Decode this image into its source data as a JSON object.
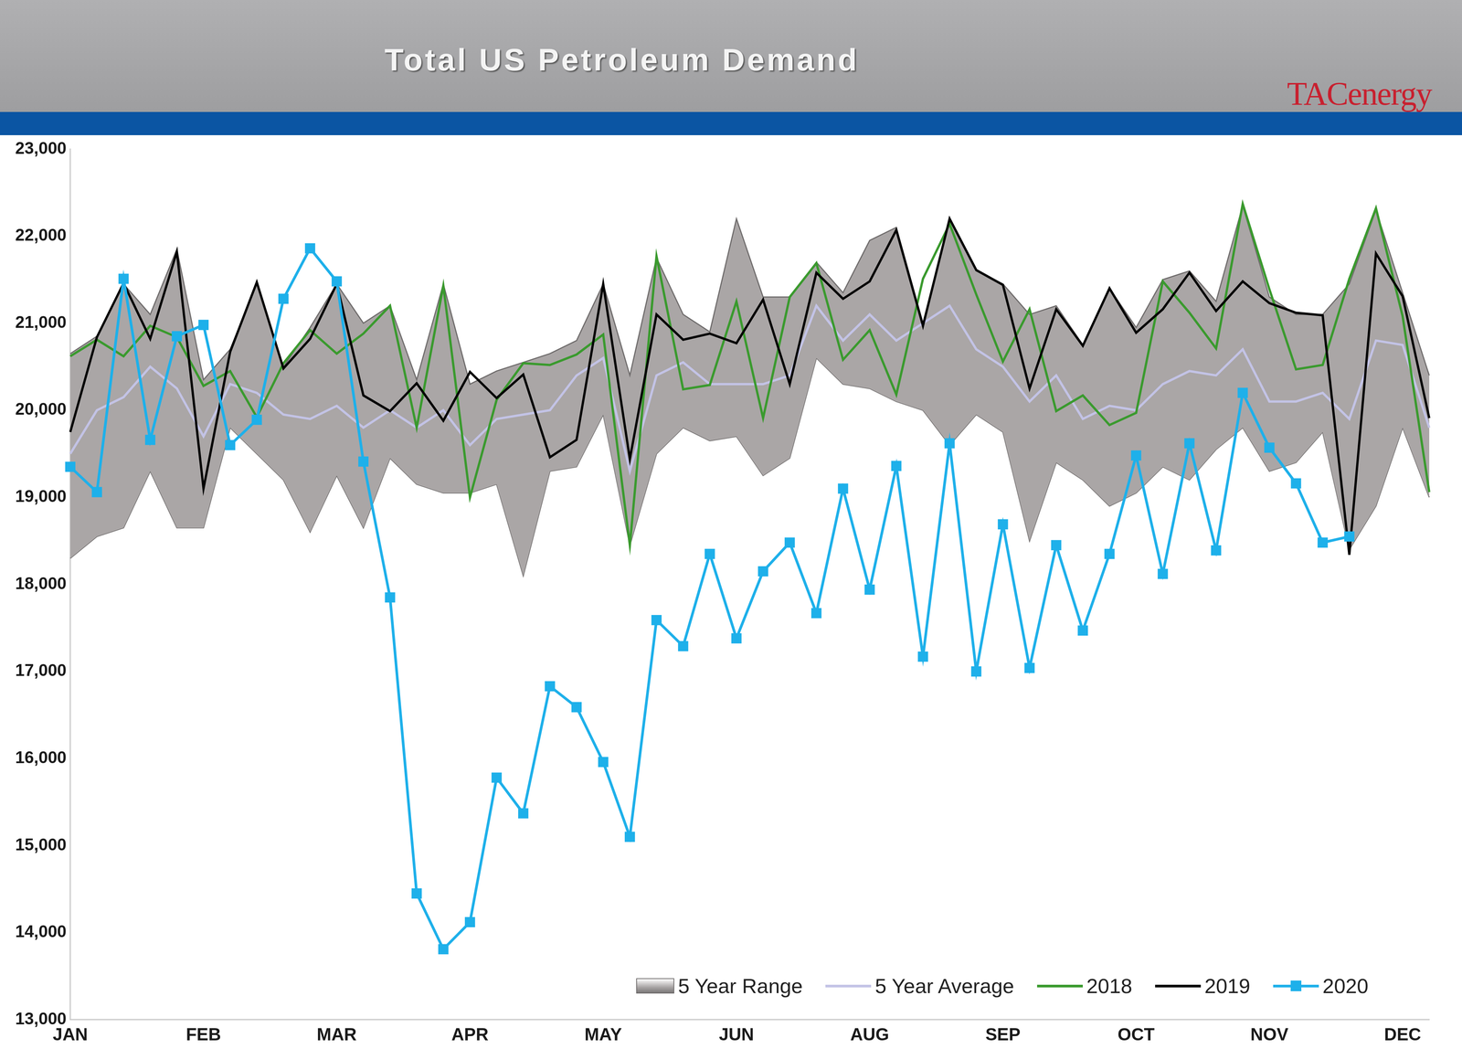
{
  "chart_data": {
    "type": "line",
    "title": "Total US Petroleum Demand",
    "annotations": [
      "TACenergy"
    ],
    "categories": [
      "JAN",
      null,
      null,
      null,
      null,
      "FEB",
      null,
      null,
      null,
      null,
      "MAR",
      null,
      null,
      null,
      null,
      "APR",
      null,
      null,
      null,
      null,
      "MAY",
      null,
      null,
      null,
      null,
      "JUN",
      null,
      null,
      null,
      null,
      "AUG",
      null,
      null,
      null,
      null,
      "SEP",
      null,
      null,
      null,
      null,
      "OCT",
      null,
      null,
      null,
      null,
      "NOV",
      null,
      null,
      null,
      null,
      "DEC",
      null
    ],
    "series": [
      {
        "name": "5 Year Range",
        "type": "range",
        "color": "#aaa6a6",
        "low": [
          18300,
          18550,
          18650,
          19300,
          18650,
          18650,
          19800,
          19500,
          19200,
          18600,
          19250,
          18650,
          19450,
          19150,
          19050,
          19050,
          19150,
          18100,
          19300,
          19350,
          19950,
          18450,
          19500,
          19800,
          19650,
          19700,
          19250,
          19450,
          20600,
          20300,
          20250,
          20100,
          20000,
          19600,
          19950,
          19750,
          18500,
          19400,
          19200,
          18900,
          19050,
          19350,
          19200,
          19550,
          19800,
          19300,
          19400,
          19750,
          18400,
          18900,
          19800,
          19000
        ],
        "high": [
          20650,
          20850,
          21450,
          21100,
          21850,
          20350,
          20700,
          21450,
          20500,
          20950,
          21450,
          21000,
          21200,
          20350,
          21450,
          20300,
          20450,
          20550,
          20650,
          20800,
          21450,
          20400,
          21750,
          21100,
          20900,
          22200,
          21300,
          21300,
          21700,
          21350,
          21950,
          22100,
          21000,
          22200,
          21600,
          21450,
          21100,
          21200,
          20750,
          21400,
          20950,
          21500,
          21600,
          21250,
          22350,
          21300,
          21100,
          21100,
          21450,
          22300,
          21350,
          20400
        ]
      },
      {
        "name": "5 Year Average",
        "color": "#c3c3e6",
        "values": [
          19500,
          20000,
          20150,
          20500,
          20250,
          19700,
          20300,
          20200,
          19950,
          19900,
          20050,
          19800,
          20000,
          19800,
          20000,
          19600,
          19900,
          19950,
          20000,
          20400,
          20600,
          19300,
          20400,
          20550,
          20300,
          20300,
          20300,
          20400,
          21200,
          20800,
          21100,
          20800,
          21000,
          21200,
          20700,
          20500,
          20100,
          20400,
          19900,
          20050,
          20000,
          20300,
          20450,
          20400,
          20700,
          20100,
          20100,
          20200,
          19900,
          20800,
          20750,
          19800
        ]
      },
      {
        "name": "2018",
        "color": "#3a9a2e",
        "values": [
          20620,
          20810,
          20620,
          20970,
          20840,
          20280,
          20450,
          19920,
          20540,
          20920,
          20650,
          20880,
          21200,
          19800,
          21430,
          19000,
          20120,
          20540,
          20520,
          20640,
          20870,
          18450,
          21770,
          20240,
          20290,
          21250,
          19910,
          21300,
          21690,
          20580,
          20920,
          20180,
          21510,
          22140,
          21330,
          20560,
          21160,
          19990,
          20170,
          19830,
          19970,
          21480,
          21120,
          20710,
          22370,
          21390,
          20470,
          20520,
          21510,
          22320,
          21080,
          19060
        ]
      },
      {
        "name": "2019",
        "color": "#000000",
        "values": [
          19750,
          20840,
          21460,
          20820,
          21820,
          19100,
          20670,
          21470,
          20480,
          20820,
          21450,
          20170,
          19990,
          20310,
          19880,
          20440,
          20140,
          20410,
          19460,
          19660,
          21450,
          19440,
          21100,
          20810,
          20880,
          20770,
          21270,
          20300,
          21580,
          21280,
          21480,
          22070,
          20970,
          22200,
          21610,
          21440,
          20250,
          21160,
          20740,
          21400,
          20890,
          21160,
          21580,
          21140,
          21480,
          21230,
          21120,
          21090,
          18340,
          21800,
          21310,
          19910
        ]
      },
      {
        "name": "2020",
        "color": "#1eb0ea",
        "marker": "square",
        "values": [
          19350,
          19060,
          21510,
          19660,
          20850,
          20980,
          19600,
          19890,
          21280,
          21860,
          21480,
          19410,
          17850,
          14450,
          13810,
          14120,
          15780,
          15370,
          16830,
          16590,
          15960,
          15100,
          17590,
          17290,
          18350,
          17380,
          18150,
          18480,
          17670,
          19100,
          17940,
          19360,
          17170,
          19620,
          17000,
          18690,
          17040,
          18450,
          17470,
          18350,
          19480,
          18120,
          19620,
          18390,
          20200,
          19570,
          19160,
          18480,
          18550,
          null,
          null,
          null
        ]
      }
    ],
    "ylim": [
      13000,
      23000
    ],
    "yticks": [
      {
        "value": 13000,
        "label": "13,000"
      },
      {
        "value": 14000,
        "label": "14,000"
      },
      {
        "value": 15000,
        "label": "15,000"
      },
      {
        "value": 16000,
        "label": "16,000"
      },
      {
        "value": 17000,
        "label": "17,000"
      },
      {
        "value": 18000,
        "label": "18,000"
      },
      {
        "value": 19000,
        "label": "19,000"
      },
      {
        "value": 20000,
        "label": "20,000"
      },
      {
        "value": 21000,
        "label": "21,000"
      },
      {
        "value": 22000,
        "label": "22,000"
      },
      {
        "value": 23000,
        "label": "23,000"
      }
    ],
    "grid": false,
    "legend": "lower right"
  }
}
